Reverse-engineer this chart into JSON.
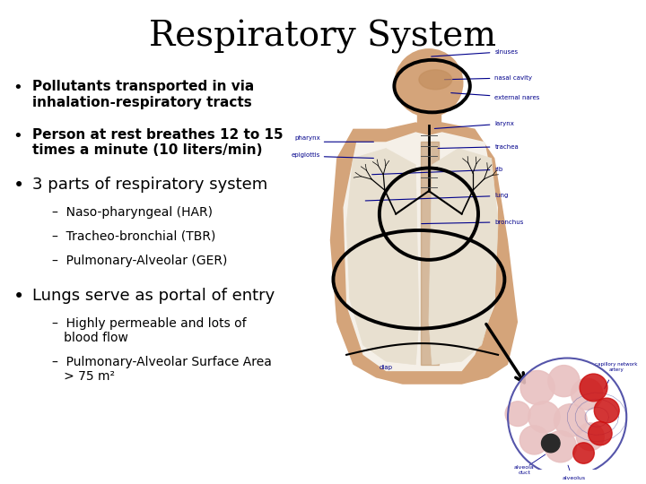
{
  "title": "Respiratory System",
  "title_fontsize": 28,
  "background_color": "#ffffff",
  "text_color": "#000000",
  "label_color": "#00008b",
  "bullet_items": [
    {
      "text": "Pollutants transported in via\ninhalation-respiratory tracts",
      "bold": true,
      "size": 11,
      "indent": 0
    },
    {
      "text": "Person at rest breathes 12 to 15\ntimes a minute (10 liters/min)",
      "bold": true,
      "size": 11,
      "indent": 0
    },
    {
      "text": "3 parts of respiratory system",
      "bold": false,
      "size": 13,
      "indent": 0
    },
    {
      "text": "–  Naso-pharyngeal (HAR)",
      "bold": false,
      "size": 10,
      "indent": 1
    },
    {
      "text": "–  Tracheo-bronchial (TBR)",
      "bold": false,
      "size": 10,
      "indent": 1
    },
    {
      "text": "–  Pulmonary-Alveolar (GER)",
      "bold": false,
      "size": 10,
      "indent": 1
    },
    {
      "text": "Lungs serve as portal of entry",
      "bold": false,
      "size": 13,
      "indent": 0
    },
    {
      "text": "–  Highly permeable and lots of\n   blood flow",
      "bold": false,
      "size": 10,
      "indent": 1
    },
    {
      "text": "–  Pulmonary-Alveolar Surface Area\n   > 75 m²",
      "bold": false,
      "size": 10,
      "indent": 1
    }
  ]
}
